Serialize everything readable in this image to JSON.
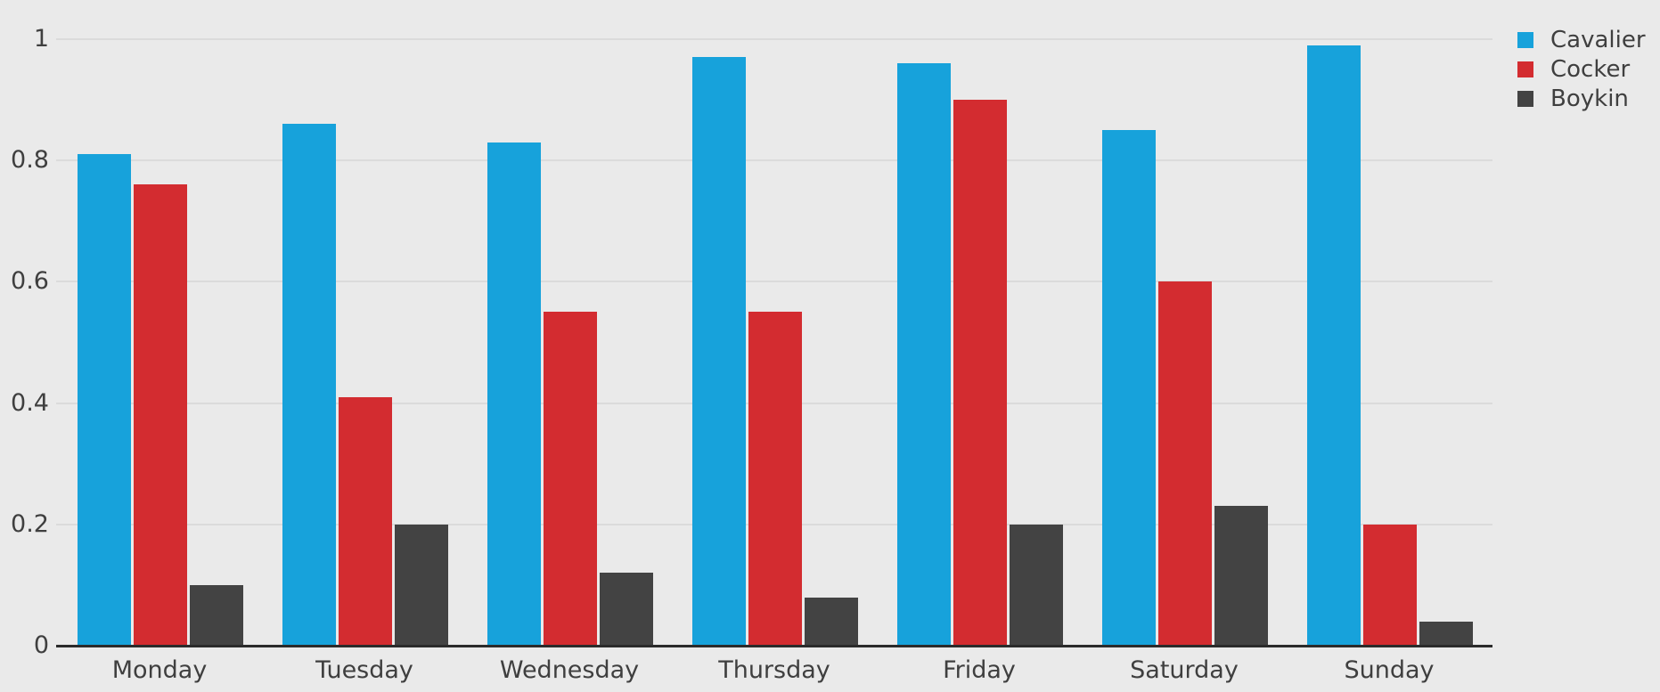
{
  "chart_data": {
    "type": "bar",
    "title": "",
    "xlabel": "",
    "ylabel": "",
    "categories": [
      "Monday",
      "Tuesday",
      "Wednesday",
      "Thursday",
      "Friday",
      "Saturday",
      "Sunday"
    ],
    "series": [
      {
        "name": "Cavalier",
        "color": "#17A2DB",
        "values": [
          0.81,
          0.86,
          0.83,
          0.97,
          0.96,
          0.85,
          0.99
        ]
      },
      {
        "name": "Cocker",
        "color": "#D32C30",
        "values": [
          0.76,
          0.41,
          0.55,
          0.55,
          0.9,
          0.6,
          0.2
        ]
      },
      {
        "name": "Boykin",
        "color": "#434343",
        "values": [
          0.1,
          0.2,
          0.12,
          0.08,
          0.2,
          0.23,
          0.04
        ]
      }
    ],
    "ylim": [
      0,
      1
    ],
    "yticks": [
      {
        "value": 0,
        "label": "0"
      },
      {
        "value": 0.2,
        "label": "0.2"
      },
      {
        "value": 0.4,
        "label": "0.4"
      },
      {
        "value": 0.6,
        "label": "0.6"
      },
      {
        "value": 0.8,
        "label": "0.8"
      },
      {
        "value": 1,
        "label": "1"
      }
    ],
    "grid": true,
    "legend_position": "top-right",
    "colors": {
      "background": "#EAEAEA",
      "gridline": "#DBDBDB",
      "axis_line": "#2B2B2B",
      "text": "#3F3F3F"
    }
  }
}
